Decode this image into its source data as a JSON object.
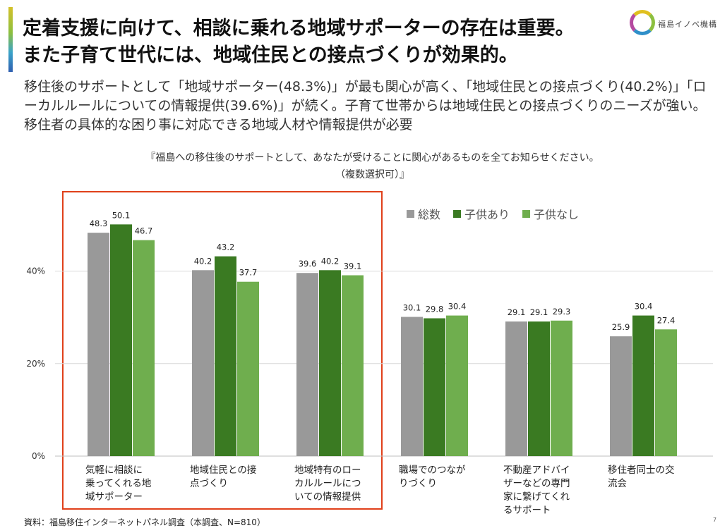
{
  "header": {
    "title_line1": "定着支援に向けて、相談に乗れる地域サポーターの存在は重要。",
    "title_line2": "また子育て世代には、地域住民との接点づくりが効果的。",
    "logo_text": "福島イノベ機構"
  },
  "lead_text": "移住後のサポートとして「地域サポーター(48.3%)」が最も関心が高く、「地域住民との接点づくり(40.2%)」「ローカルルールについての情報提供(39.6%)」が続く。子育て世帯からは地域住民との接点づくりのニーズが強い。移住者の具体的な困り事に対応できる地域人材や情報提供が必要",
  "question": {
    "line1": "『福島への移住後のサポートとして、あなたが受けることに関心があるものを全てお知らせください。",
    "line2": "（複数選択可）』"
  },
  "chart_data": {
    "type": "bar",
    "categories": [
      [
        "気軽に相談に",
        "乗ってくれる地",
        "域サポーター"
      ],
      [
        "地域住民との接",
        "点づくり"
      ],
      [
        "地域特有のロー",
        "カルルールにつ",
        "いての情報提供"
      ],
      [
        "職場でのつなが",
        "りづくり"
      ],
      [
        "不動産アドバイ",
        "ザーなどの専門",
        "家に繋げてくれ",
        "るサポート"
      ],
      [
        "移住者同士の交",
        "流会"
      ]
    ],
    "series": [
      {
        "name": "総数",
        "color": "#999999",
        "values": [
          48.3,
          40.2,
          39.6,
          30.1,
          29.1,
          25.9
        ],
        "labels": [
          "48.3",
          "40.2",
          "39.6",
          "30.1",
          "29.1",
          "25.9"
        ]
      },
      {
        "name": "子供あり",
        "color": "#3a7a22",
        "values": [
          50.1,
          43.2,
          40.2,
          29.8,
          29.1,
          30.4
        ],
        "labels": [
          "50.1",
          "43.2",
          "40.2",
          "29.8",
          "29.1",
          "30.4"
        ]
      },
      {
        "name": "子供なし",
        "color": "#6fae4e",
        "values": [
          46.7,
          37.7,
          39.1,
          30.4,
          29.3,
          27.4
        ],
        "labels": [
          "46.7",
          "37.7",
          "39.1",
          "30.4",
          "29.3",
          "27.4"
        ]
      }
    ],
    "yticks": [
      0,
      20,
      40
    ],
    "ytick_labels": [
      "0%",
      "20%",
      "40%"
    ],
    "ylim": [
      0,
      60
    ],
    "grid": true,
    "legend": "top-right",
    "highlight": {
      "categories": [
        0,
        1,
        2
      ],
      "color": "#e0401a"
    }
  },
  "source": "資料：福島移住インターネットパネル調査（本調査、N=810）",
  "page_number": "7"
}
